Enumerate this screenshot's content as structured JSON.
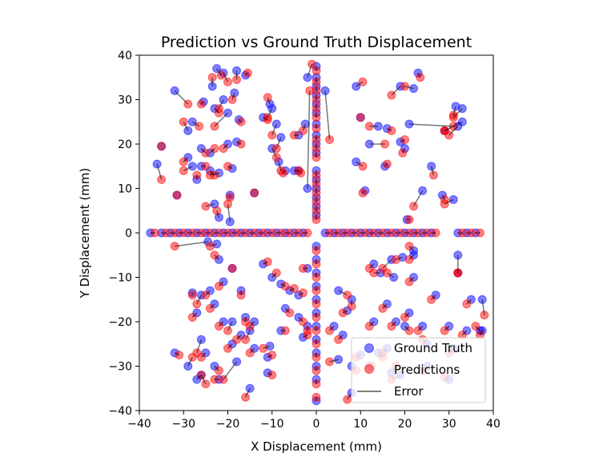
{
  "chart_data": {
    "type": "scatter",
    "title": "Prediction vs Ground Truth Displacement",
    "xlabel": "X Displacement (mm)",
    "ylabel": "Y Displacement (mm)",
    "xlim": [
      -40,
      40
    ],
    "ylim": [
      -40,
      40
    ],
    "xticks": [
      "−40",
      "−30",
      "−20",
      "−10",
      "0",
      "10",
      "20",
      "30",
      "40"
    ],
    "yticks": [
      "−40",
      "−30",
      "−20",
      "−10",
      "0",
      "10",
      "20",
      "30",
      "40"
    ],
    "grid": false,
    "legend_position": "bottom-right",
    "legend": [
      {
        "label": "Ground Truth",
        "marker": "circle",
        "color": "#0000ff"
      },
      {
        "label": "Predictions",
        "marker": "circle",
        "color": "#ff0000"
      },
      {
        "label": "Error",
        "marker": "line",
        "color": "#808080"
      }
    ],
    "series": [
      {
        "name": "Ground Truth",
        "color": "#0000ff"
      },
      {
        "name": "Predictions",
        "color": "#ff0000"
      },
      {
        "name": "Error",
        "color": "#808080"
      }
    ],
    "pairs": [
      [
        -37.5,
        0,
        -36.5,
        0
      ],
      [
        -35,
        0,
        -34,
        0
      ],
      [
        -33,
        0,
        -32,
        0
      ],
      [
        -31,
        0,
        -30,
        0
      ],
      [
        -29,
        0,
        -28,
        0
      ],
      [
        -27,
        0,
        -26,
        0
      ],
      [
        -25,
        0,
        -24,
        0
      ],
      [
        -23,
        0,
        -22,
        0
      ],
      [
        -21,
        0,
        -20,
        0
      ],
      [
        -19,
        0,
        -18,
        0
      ],
      [
        -17,
        0,
        -16,
        0
      ],
      [
        -15,
        0,
        -14,
        0
      ],
      [
        -13,
        0,
        -12,
        0
      ],
      [
        -11,
        0,
        -10,
        0
      ],
      [
        -9,
        0,
        -8,
        0
      ],
      [
        -7,
        0,
        -6,
        0
      ],
      [
        -5,
        0,
        -4,
        0
      ],
      [
        -3,
        0,
        -2,
        0
      ],
      [
        2,
        0,
        3,
        0
      ],
      [
        4,
        0,
        5,
        0
      ],
      [
        6,
        0,
        7,
        0
      ],
      [
        8,
        0,
        9,
        0
      ],
      [
        10,
        0,
        11,
        0
      ],
      [
        12,
        0,
        13,
        0
      ],
      [
        14,
        0,
        15,
        0
      ],
      [
        16,
        0,
        17,
        0
      ],
      [
        18,
        0,
        19,
        0
      ],
      [
        20,
        0,
        21,
        0
      ],
      [
        22,
        0,
        23,
        0
      ],
      [
        24,
        0,
        25,
        0
      ],
      [
        26,
        0,
        27,
        0
      ],
      [
        32,
        0,
        33,
        0
      ],
      [
        34,
        0,
        35,
        0
      ],
      [
        36,
        0,
        37,
        0
      ],
      [
        0,
        37.5,
        0,
        36.5
      ],
      [
        0,
        35,
        0,
        34
      ],
      [
        0,
        33,
        0,
        32
      ],
      [
        0,
        31,
        0,
        30
      ],
      [
        0,
        29,
        0,
        28
      ],
      [
        0,
        27,
        0,
        26
      ],
      [
        0,
        24.5,
        0,
        23.5
      ],
      [
        0,
        22,
        0,
        21
      ],
      [
        0,
        20,
        0,
        19
      ],
      [
        0,
        18,
        0,
        17
      ],
      [
        0,
        14,
        0,
        13
      ],
      [
        0,
        12,
        0,
        11
      ],
      [
        0,
        10,
        0,
        9
      ],
      [
        0,
        8,
        0,
        7
      ],
      [
        0,
        6,
        0,
        5
      ],
      [
        0,
        4,
        0,
        3
      ],
      [
        0,
        -3,
        0,
        -4
      ],
      [
        0,
        -6,
        0,
        -7
      ],
      [
        0,
        -9,
        0,
        -10
      ],
      [
        0,
        -12,
        0,
        -13
      ],
      [
        0,
        -15,
        0,
        -16
      ],
      [
        0,
        -18,
        0,
        -19
      ],
      [
        0,
        -21,
        0,
        -22
      ],
      [
        0,
        -24,
        0,
        -25
      ],
      [
        0,
        -27,
        0,
        -28
      ],
      [
        0,
        -30,
        0,
        -31
      ],
      [
        0,
        -33,
        0,
        -34
      ],
      [
        0,
        -37.8,
        0,
        -37
      ],
      [
        -32,
        32,
        -29,
        29
      ],
      [
        -36,
        15.5,
        -35,
        12
      ],
      [
        -35,
        19.5,
        -35,
        19.5
      ],
      [
        -31.5,
        8.5,
        -31.5,
        8.5
      ],
      [
        -22.5,
        37,
        -21.5,
        35.5
      ],
      [
        -23.5,
        33,
        -23.5,
        35
      ],
      [
        -21,
        36,
        -20,
        34
      ],
      [
        -18,
        36.5,
        -18,
        34.5
      ],
      [
        -16,
        35.5,
        -15.5,
        36
      ],
      [
        -21,
        30,
        -22,
        28
      ],
      [
        -23,
        28,
        -22,
        27
      ],
      [
        -20,
        27,
        -23,
        24
      ],
      [
        -17.5,
        25.5,
        -17,
        25
      ],
      [
        -18.5,
        31.5,
        -19,
        30
      ],
      [
        -25.5,
        29.5,
        -26,
        29
      ],
      [
        -28,
        25,
        -26.5,
        24
      ],
      [
        -29,
        23,
        -30,
        25
      ],
      [
        -26,
        19,
        -25,
        18
      ],
      [
        -24,
        18,
        -23,
        19
      ],
      [
        -20,
        20,
        -21,
        19
      ],
      [
        -18,
        20.5,
        -17,
        20
      ],
      [
        -29,
        17,
        -30,
        16
      ],
      [
        -28,
        15,
        -30,
        14
      ],
      [
        -26,
        15,
        -25,
        15
      ],
      [
        -24,
        14,
        -23,
        13
      ],
      [
        -22,
        13.5,
        -24,
        13
      ],
      [
        -19,
        14.5,
        -20,
        15
      ],
      [
        -27,
        12,
        -27,
        13
      ],
      [
        -23,
        6.5,
        -25,
        6
      ],
      [
        -22,
        3.5,
        -22.5,
        5
      ],
      [
        -19.5,
        2.5,
        -20,
        6.5
      ],
      [
        -19.5,
        8.5,
        -19.5,
        8
      ],
      [
        -14,
        9,
        -14,
        9
      ],
      [
        -12,
        26,
        -11,
        25.5
      ],
      [
        -10.5,
        29,
        -11,
        30.5
      ],
      [
        -10,
        28,
        -11,
        26
      ],
      [
        -9,
        24.5,
        -10,
        22
      ],
      [
        -8,
        21.5,
        -9,
        19
      ],
      [
        -10,
        19,
        -9,
        17
      ],
      [
        -7,
        14,
        -7.5,
        13.5
      ],
      [
        -8.5,
        16,
        -8,
        14
      ],
      [
        -4,
        14,
        -3.5,
        13.5
      ],
      [
        -4,
        22,
        -5,
        22
      ],
      [
        -2,
        35,
        -1,
        38
      ],
      [
        -2.5,
        24.5,
        -3,
        23
      ],
      [
        -2,
        10,
        -1.5,
        32
      ],
      [
        -5,
        14,
        -4,
        14
      ],
      [
        2,
        32,
        3,
        21
      ],
      [
        9,
        33,
        10.5,
        34
      ],
      [
        19,
        33,
        17,
        31
      ],
      [
        22,
        32.5,
        20,
        33
      ],
      [
        23,
        36,
        23.5,
        35
      ],
      [
        31.5,
        28.5,
        31,
        26.5
      ],
      [
        33,
        28,
        31,
        26
      ],
      [
        32,
        24,
        30,
        22
      ],
      [
        33,
        25,
        29,
        23
      ],
      [
        29,
        23,
        29,
        23
      ],
      [
        21,
        24.5,
        31,
        24
      ],
      [
        16,
        23.5,
        17,
        23
      ],
      [
        14,
        24,
        12,
        24
      ],
      [
        10,
        26,
        10,
        26
      ],
      [
        12,
        20,
        15.5,
        20
      ],
      [
        19,
        20.5,
        20,
        21
      ],
      [
        20,
        19,
        19.5,
        18
      ],
      [
        15.5,
        15,
        16,
        15.5
      ],
      [
        9,
        16,
        10.5,
        15
      ],
      [
        11,
        9.5,
        10.5,
        9
      ],
      [
        26,
        15,
        26.5,
        13
      ],
      [
        24,
        9.5,
        22,
        6
      ],
      [
        20.5,
        3,
        21,
        3
      ],
      [
        31,
        7.5,
        29,
        6.5
      ],
      [
        28.5,
        8.5,
        29,
        7.5
      ],
      [
        22,
        -4,
        21,
        -3
      ],
      [
        22,
        -5,
        21,
        -6
      ],
      [
        19.5,
        -5.5,
        18,
        -6
      ],
      [
        17,
        -6,
        15,
        -8
      ],
      [
        13,
        -7,
        12,
        -8
      ],
      [
        14.5,
        -9,
        13,
        -9
      ],
      [
        17.5,
        -10,
        16,
        -9
      ],
      [
        22,
        -10,
        21,
        -11
      ],
      [
        -28,
        -13.5,
        -28,
        -14
      ],
      [
        -26,
        -14,
        -27,
        -16
      ],
      [
        -24,
        -13,
        -25,
        -14
      ],
      [
        -27,
        -18,
        -28,
        -19
      ],
      [
        -26,
        -24,
        -27,
        -27
      ],
      [
        -25,
        -27,
        -26,
        -28
      ],
      [
        -23,
        -16,
        -24,
        -17
      ],
      [
        -21,
        -20,
        -22,
        -21
      ],
      [
        -19,
        -20,
        -20,
        -22
      ],
      [
        -19,
        -25,
        -20,
        -26
      ],
      [
        -17,
        -23,
        -18,
        -24
      ],
      [
        -15,
        -22,
        -16,
        -24
      ],
      [
        -14,
        -26,
        -15,
        -27
      ],
      [
        -10.5,
        -25.5,
        -12,
        -26
      ],
      [
        -16,
        -19,
        -16,
        -20
      ],
      [
        -14,
        -20,
        -15,
        -21
      ],
      [
        -15,
        -35,
        -16,
        -37
      ],
      [
        -18,
        -29,
        -21,
        -33
      ],
      [
        -22,
        -33,
        -23,
        -33
      ],
      [
        -27,
        -33,
        -26,
        -32
      ],
      [
        -29,
        -30,
        -28,
        -28
      ],
      [
        -32,
        -27,
        -31,
        -27.5
      ],
      [
        -26,
        -32,
        -25,
        -34
      ],
      [
        -23,
        -30,
        -22,
        -31
      ],
      [
        -22.5,
        -2.5,
        -24,
        -3
      ],
      [
        -24.5,
        -2,
        -32,
        -3
      ],
      [
        -22,
        -6,
        -23,
        -5
      ],
      [
        -19,
        -8,
        -19,
        -8
      ],
      [
        -17,
        -13,
        -17,
        -14
      ],
      [
        -21,
        -11,
        -22,
        -12
      ],
      [
        -12,
        -7,
        -11,
        -6.5
      ],
      [
        -10,
        -10,
        -9,
        -9
      ],
      [
        -8,
        -11.5,
        -7,
        -12
      ],
      [
        -6,
        -13,
        -5,
        -12.5
      ],
      [
        -4,
        -14,
        -3,
        -13.5
      ],
      [
        -7,
        -17,
        -6,
        -18
      ],
      [
        -4,
        -19,
        -3,
        -20
      ],
      [
        -8,
        -22,
        -7,
        -22
      ],
      [
        -11,
        -31.5,
        -10,
        -32
      ],
      [
        -11,
        -28,
        -10,
        -27.5
      ],
      [
        -2,
        -21,
        -2,
        -22
      ],
      [
        -3,
        -23.5,
        -2,
        -23
      ],
      [
        -2,
        -8,
        -3,
        -8
      ],
      [
        5,
        -13,
        7,
        -14
      ],
      [
        8,
        -15,
        8,
        -16.5
      ],
      [
        7,
        -17.5,
        6,
        -18
      ],
      [
        4,
        -21,
        3,
        -22
      ],
      [
        6,
        -23,
        5,
        -24
      ],
      [
        5,
        -28.5,
        3,
        -29
      ],
      [
        8,
        -30,
        9,
        -31
      ],
      [
        8,
        -36,
        7,
        -37.5
      ],
      [
        10,
        -27.5,
        9,
        -28
      ],
      [
        12,
        -30,
        12.5,
        -30
      ],
      [
        14,
        -27,
        15,
        -28
      ],
      [
        16,
        -26,
        15,
        -27
      ],
      [
        17,
        -31.5,
        18,
        -30
      ],
      [
        19,
        -32,
        17,
        -33
      ],
      [
        13,
        -20,
        12,
        -21
      ],
      [
        16,
        -16,
        15,
        -17
      ],
      [
        18,
        -20,
        17,
        -21
      ],
      [
        20,
        -21,
        21,
        -22
      ],
      [
        21,
        -18,
        20,
        -19
      ],
      [
        24,
        -21,
        23,
        -22
      ],
      [
        25,
        -25,
        24,
        -24
      ],
      [
        27,
        -14,
        26,
        -15
      ],
      [
        30,
        -21,
        29,
        -22
      ],
      [
        31,
        -26,
        30,
        -27
      ],
      [
        32,
        -5,
        32,
        -9
      ],
      [
        35,
        -15,
        34,
        -16
      ],
      [
        34,
        -22,
        33,
        -23
      ],
      [
        37.5,
        -15,
        38,
        -18.5
      ],
      [
        37.5,
        -22,
        37,
        -23
      ],
      [
        30,
        -33,
        29,
        -32.5
      ],
      [
        25,
        -30,
        24,
        -31
      ],
      [
        32,
        -9,
        32,
        -9
      ],
      [
        37,
        -22,
        36,
        -21
      ]
    ]
  }
}
